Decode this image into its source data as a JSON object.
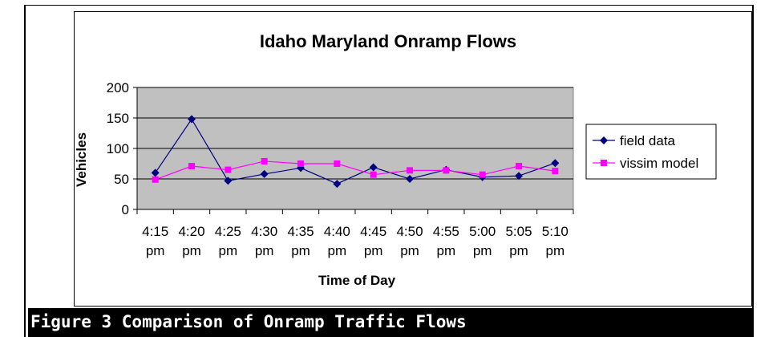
{
  "caption": "Figure 3  Comparison of Onramp Traffic Flows",
  "chart_data": {
    "type": "line",
    "title": "Idaho Maryland Onramp Flows",
    "xlabel": "Time of Day",
    "ylabel": "Vehicles",
    "categories": [
      "4:15 pm",
      "4:20 pm",
      "4:25 pm",
      "4:30 pm",
      "4:35 pm",
      "4:40 pm",
      "4:45 pm",
      "4:50 pm",
      "4:55 pm",
      "5:00 pm",
      "5:05 pm",
      "5:10 pm"
    ],
    "category_lines": [
      [
        "4:15",
        "pm"
      ],
      [
        "4:20",
        "pm"
      ],
      [
        "4:25",
        "pm"
      ],
      [
        "4:30",
        "pm"
      ],
      [
        "4:35",
        "pm"
      ],
      [
        "4:40",
        "pm"
      ],
      [
        "4:45",
        "pm"
      ],
      [
        "4:50",
        "pm"
      ],
      [
        "4:55",
        "pm"
      ],
      [
        "5:00",
        "pm"
      ],
      [
        "5:05",
        "pm"
      ],
      [
        "5:10",
        "pm"
      ]
    ],
    "ylim": [
      0,
      200
    ],
    "yticks": [
      0,
      50,
      100,
      150,
      200
    ],
    "grid": true,
    "legend_position": "right",
    "plot_background": "#c0c0c0",
    "series": [
      {
        "name": "field data",
        "color": "#000080",
        "marker": "diamond",
        "values": [
          60,
          148,
          47,
          58,
          68,
          42,
          69,
          50,
          65,
          53,
          55,
          76
        ]
      },
      {
        "name": "vissim model",
        "color": "#ff00ff",
        "marker": "square",
        "values": [
          49,
          71,
          65,
          79,
          75,
          75,
          57,
          64,
          64,
          57,
          71,
          63
        ]
      }
    ]
  }
}
